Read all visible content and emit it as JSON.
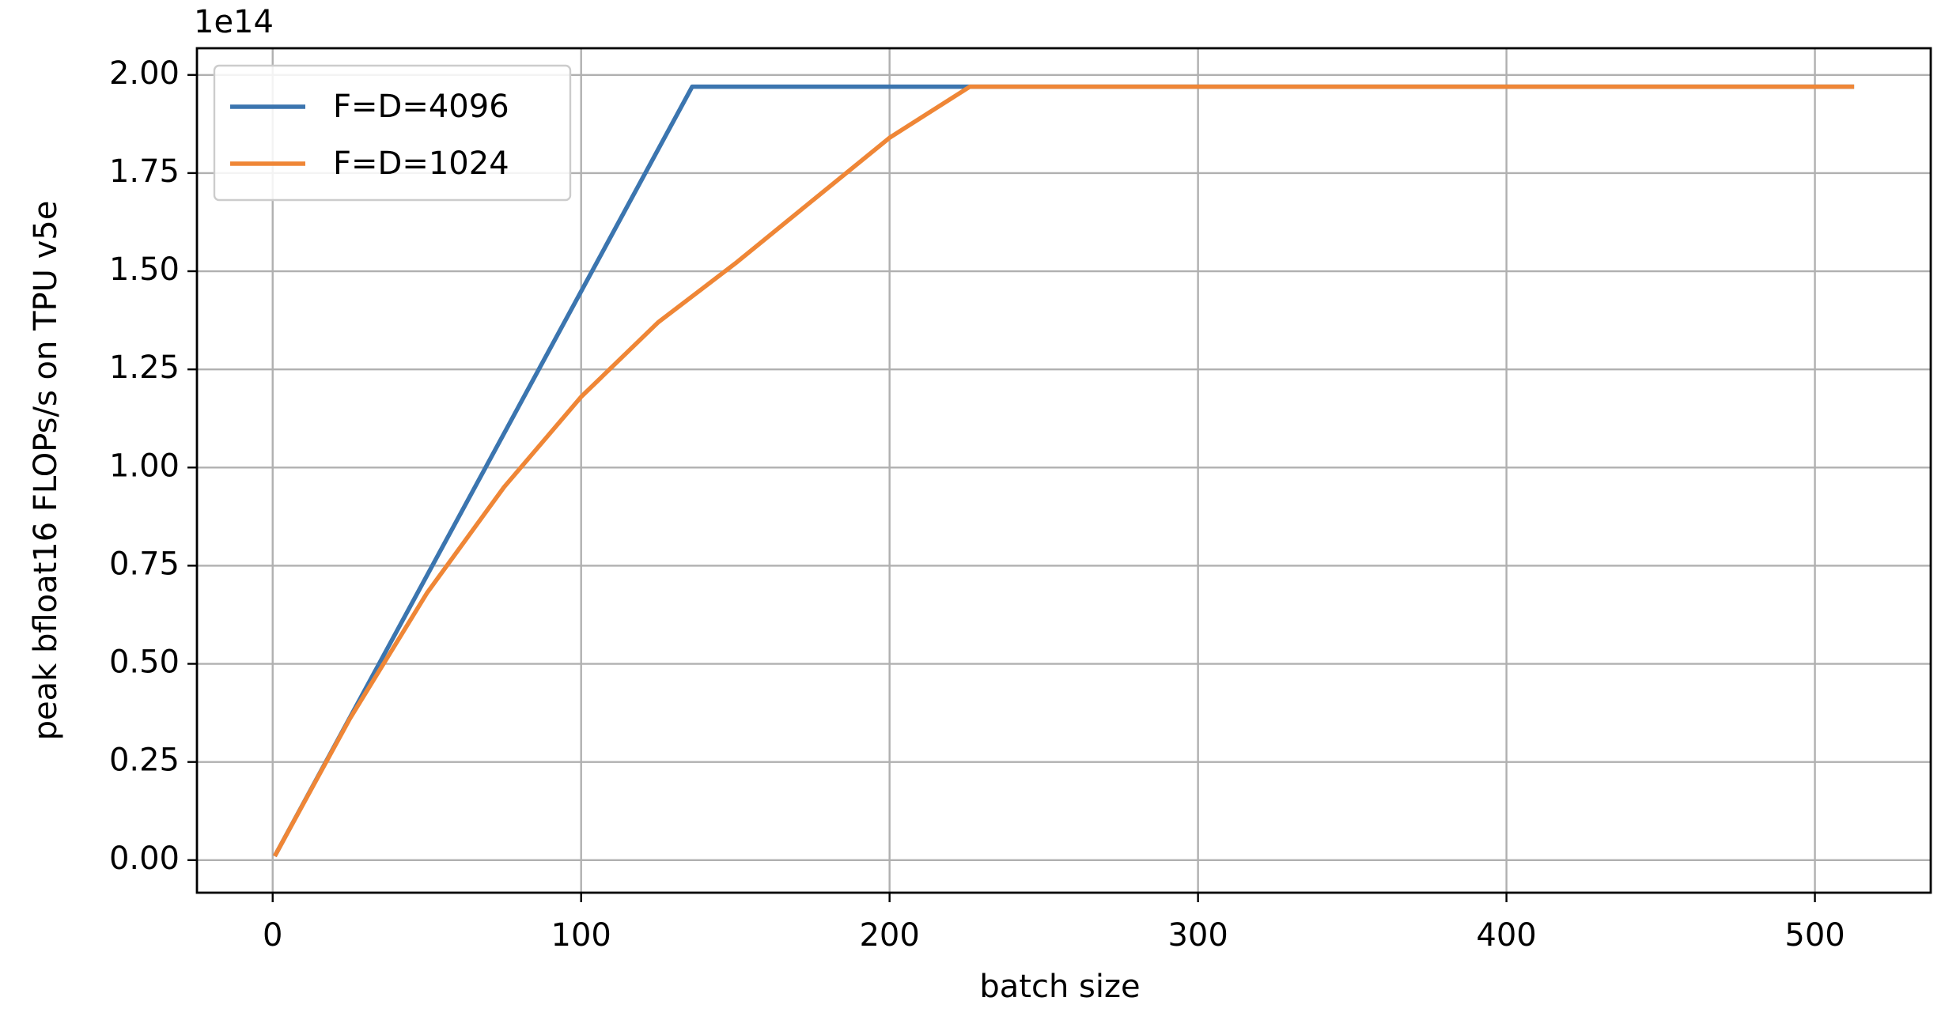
{
  "chart_data": {
    "type": "line",
    "x_label": "batch size",
    "y_label": "peak bfloat16 FLOPs/s on TPU v5e",
    "y_offset_label": "1e14",
    "xlim": [
      -24.55,
      537.55
    ],
    "ylim": [
      -0.083,
      2.068
    ],
    "xticks": [
      0,
      100,
      200,
      300,
      400,
      500
    ],
    "yticks": [
      {
        "value": 0,
        "label": "0.00"
      },
      {
        "value": 0.25,
        "label": "0.25"
      },
      {
        "value": 0.5,
        "label": "0.50"
      },
      {
        "value": 0.75,
        "label": "0.75"
      },
      {
        "value": 1,
        "label": "1.00"
      },
      {
        "value": 1.25,
        "label": "1.25"
      },
      {
        "value": 1.5,
        "label": "1.50"
      },
      {
        "value": 1.75,
        "label": "1.75"
      },
      {
        "value": 2,
        "label": "2.00"
      }
    ],
    "grid": true,
    "legend": "upper left",
    "series": [
      {
        "name": "F=D=4096",
        "color": "#3b75af",
        "x": [
          1,
          136,
          512
        ],
        "values": [
          0.015,
          1.97,
          1.97
        ]
      },
      {
        "name": "F=D=1024",
        "color": "#ef8636",
        "x": [
          1,
          25,
          50,
          75,
          100,
          125,
          150,
          175,
          200,
          226,
          512
        ],
        "values": [
          0.015,
          0.36,
          0.68,
          0.95,
          1.18,
          1.37,
          1.52,
          1.68,
          1.84,
          1.97,
          1.97
        ]
      }
    ]
  }
}
